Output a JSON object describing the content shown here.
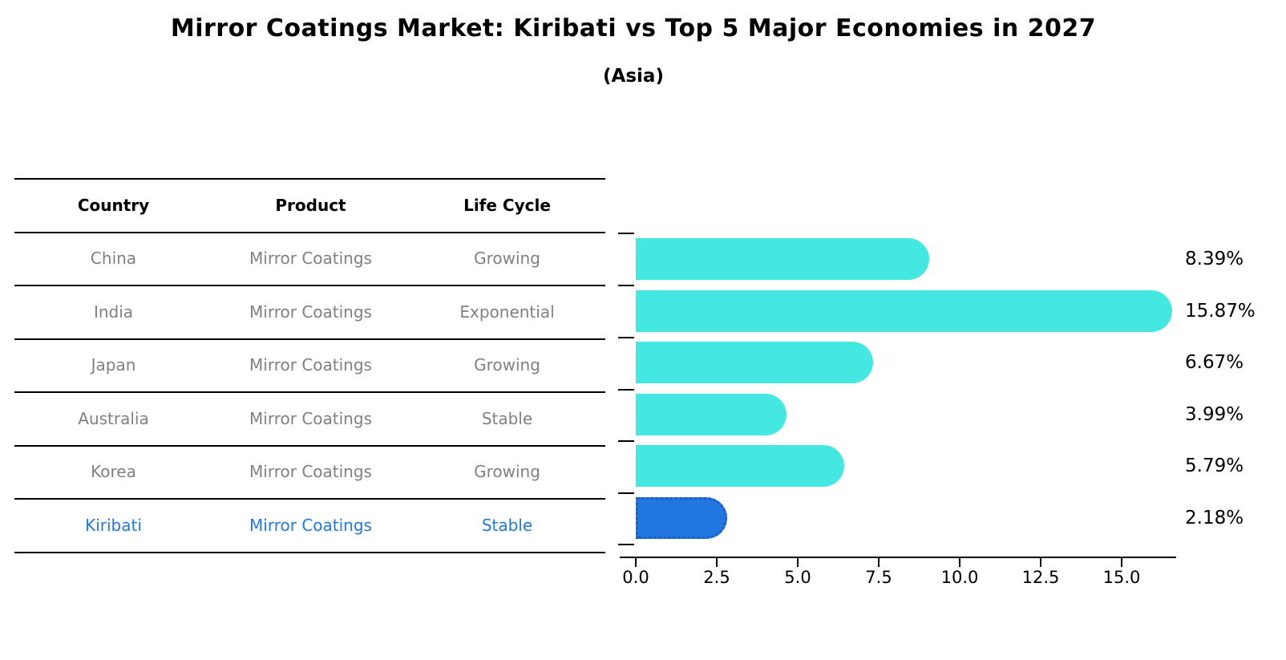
{
  "title": "Mirror Coatings Market: Kiribati vs Top 5 Major Economies in 2027",
  "subtitle": "(Asia)",
  "table": {
    "headers": [
      "Country",
      "Product",
      "Life Cycle"
    ],
    "rows": [
      {
        "country": "China",
        "product": "Mirror Coatings",
        "life_cycle": "Growing"
      },
      {
        "country": "India",
        "product": "Mirror Coatings",
        "life_cycle": "Exponential"
      },
      {
        "country": "Japan",
        "product": "Mirror Coatings",
        "life_cycle": "Growing"
      },
      {
        "country": "Australia",
        "product": "Mirror Coatings",
        "life_cycle": "Stable"
      },
      {
        "country": "Korea",
        "product": "Mirror Coatings",
        "life_cycle": "Growing"
      },
      {
        "country": "Kiribati",
        "product": "Mirror Coatings",
        "life_cycle": "Stable"
      }
    ],
    "highlight_row_index": 5
  },
  "chart_data": {
    "type": "bar",
    "orientation": "horizontal",
    "categories": [
      "China",
      "India",
      "Japan",
      "Australia",
      "Korea",
      "Kiribati"
    ],
    "values": [
      8.39,
      15.87,
      6.67,
      3.99,
      5.79,
      2.18
    ],
    "value_labels": [
      "8.39%",
      "15.87%",
      "6.67%",
      "3.99%",
      "5.79%",
      "2.18%"
    ],
    "x_ticks": [
      "0.0",
      "2.5",
      "5.0",
      "7.5",
      "10.0",
      "12.5",
      "15.0"
    ],
    "xlim": [
      0,
      16.6
    ],
    "grid": false,
    "legend": "none",
    "bar_color": "#45E8E0",
    "highlight_bar_color": "#2176E0",
    "highlight_index": 5
  },
  "colors": {
    "background": "#FFFFFF",
    "title_text": "#000000",
    "table_text": "#808080",
    "highlight_text": "#2478D8",
    "line": "#000000"
  }
}
